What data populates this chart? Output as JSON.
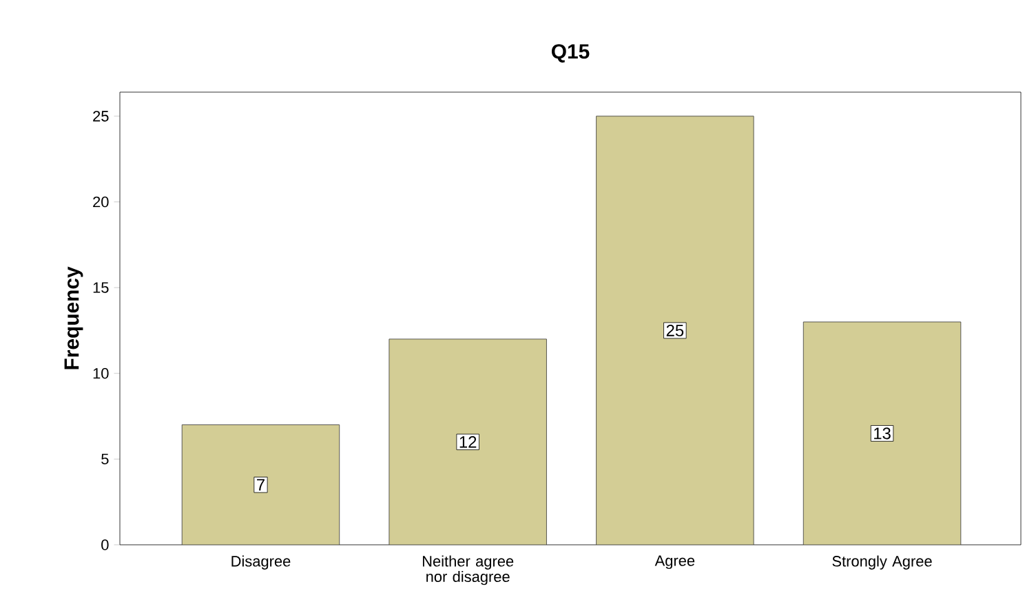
{
  "chart_data": {
    "type": "bar",
    "title": "Q15",
    "ylabel": "Frequency",
    "categories": [
      "Disagree",
      "Neither agree nor disagree",
      "Agree",
      "Strongly Agree"
    ],
    "values": [
      7,
      12,
      25,
      13
    ],
    "color": "#d3cd95",
    "ylim": [
      0,
      26.4
    ],
    "yticks": [
      0,
      5,
      10,
      15,
      20,
      25
    ],
    "data_labels": true,
    "grid": false
  }
}
